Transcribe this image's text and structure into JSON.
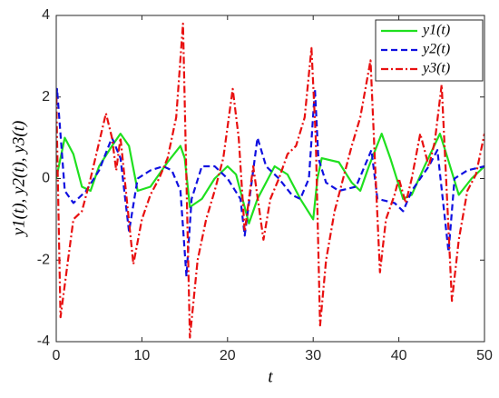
{
  "chart_data": {
    "type": "line",
    "xlabel": "t",
    "ylabel": "y1(t), y2(t), y3(t)",
    "xlim": [
      0,
      50
    ],
    "ylim": [
      -4,
      4
    ],
    "xticks": [
      0,
      10,
      20,
      30,
      40,
      50
    ],
    "yticks": [
      -4,
      -2,
      0,
      2,
      4
    ],
    "grid": false,
    "legend": "upper right",
    "series": [
      {
        "name": "y1(t)",
        "color": "#1fe01f",
        "dash": "solid",
        "x": [
          0,
          1,
          2,
          3,
          4,
          5,
          6.5,
          7.5,
          8.5,
          9.5,
          11,
          13,
          14.5,
          15,
          15.6,
          17,
          18.5,
          20,
          21,
          22.5,
          23.5,
          25.5,
          27,
          28.5,
          30,
          30.5,
          31,
          33,
          34.5,
          35.5,
          36.5,
          38,
          39,
          40.5,
          41.5,
          43,
          44.8,
          45.7,
          47,
          48.5,
          50
        ],
        "values": [
          0,
          1,
          0.6,
          -0.2,
          -0.3,
          0.3,
          0.8,
          1.1,
          0.8,
          -0.3,
          -0.2,
          0.4,
          0.8,
          0.5,
          -0.7,
          -0.5,
          0,
          0.3,
          0.1,
          -1.1,
          -0.5,
          0.3,
          0.1,
          -0.5,
          -1,
          0,
          0.5,
          0.4,
          -0.1,
          -0.3,
          0.3,
          1.1,
          0.5,
          -0.5,
          -0.4,
          0.3,
          1.1,
          0.5,
          -0.4,
          0,
          0.3
        ]
      },
      {
        "name": "y2(t)",
        "color": "#1010e0",
        "dash": "dashed",
        "x": [
          0,
          0.1,
          1,
          2,
          3.5,
          5,
          6.5,
          7.5,
          8.5,
          9.5,
          11,
          12.5,
          13.5,
          14.5,
          15.2,
          15.8,
          17,
          18.5,
          20,
          21.5,
          22,
          22.5,
          23.5,
          24.5,
          26,
          27.5,
          28.5,
          29.5,
          30.2,
          30.6,
          31.5,
          33,
          35,
          36.8,
          37.5,
          39.5,
          40.5,
          41.5,
          43.5,
          44.5,
          45.8,
          46.5,
          48,
          50
        ],
        "values": [
          1.8,
          2.2,
          -0.3,
          -0.6,
          -0.3,
          0.2,
          1,
          0.5,
          -1.3,
          0,
          0.2,
          0.3,
          0.2,
          -0.3,
          -2.4,
          -0.5,
          0.3,
          0.3,
          0,
          -0.5,
          -1.4,
          -0.6,
          1,
          0.3,
          0,
          -0.4,
          -0.5,
          0,
          2.2,
          0.5,
          -0.1,
          -0.3,
          -0.2,
          0.7,
          -0.5,
          -0.6,
          -0.8,
          -0.3,
          0.3,
          0.7,
          -1.8,
          0,
          0.2,
          0.3
        ]
      },
      {
        "name": "y3(t)",
        "color": "#e81010",
        "dash": "dashdot",
        "x": [
          0,
          0.5,
          2,
          3,
          4,
          5.8,
          6.5,
          7,
          7.5,
          9,
          10,
          11,
          12,
          13,
          14,
          14.8,
          15.6,
          16.5,
          17.5,
          18.5,
          19.5,
          20.6,
          21.3,
          22,
          23,
          24.2,
          25,
          26,
          27,
          28,
          29,
          29.8,
          30.3,
          30.8,
          31.5,
          32.5,
          33.5,
          34.5,
          35.5,
          36.7,
          37.3,
          37.8,
          38.5,
          39.5,
          40,
          40.8,
          41.5,
          42.5,
          43.5,
          44.2,
          45,
          46.2,
          47,
          48,
          49,
          50
        ],
        "values": [
          2,
          -3.4,
          -1,
          -0.8,
          0,
          1.6,
          1,
          0.2,
          1,
          -2.1,
          -1,
          -0.4,
          0,
          0.5,
          1.5,
          3.8,
          -3.9,
          -2,
          -1,
          -0.3,
          0.5,
          2.2,
          1,
          -1.3,
          0.3,
          -1.5,
          -0.5,
          0,
          0.6,
          0.8,
          1.5,
          3.2,
          1,
          -3.6,
          -2,
          -0.8,
          0,
          0.8,
          1.5,
          2.9,
          0,
          -2.3,
          -1,
          -0.4,
          0,
          -0.6,
          0,
          1.1,
          0.3,
          0.9,
          2.3,
          -3,
          -1.5,
          -0.3,
          0.1,
          1.1
        ]
      }
    ]
  }
}
